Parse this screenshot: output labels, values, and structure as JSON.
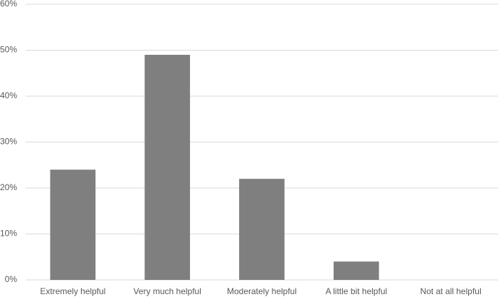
{
  "chart_data": {
    "type": "bar",
    "categories": [
      "Extremely helpful",
      "Very much helpful",
      "Moderately helpful",
      "A little bit helpful",
      "Not at all helpful"
    ],
    "values": [
      24,
      49,
      22,
      4,
      0
    ],
    "color": "#7f7f7f",
    "ylim": [
      0,
      60
    ],
    "yticks": [
      {
        "value": 0,
        "label": "0%"
      },
      {
        "value": 10,
        "label": "10%"
      },
      {
        "value": 20,
        "label": "20%"
      },
      {
        "value": 30,
        "label": "30%"
      },
      {
        "value": 40,
        "label": "40%"
      },
      {
        "value": 50,
        "label": "50%"
      },
      {
        "value": 60,
        "label": "60%"
      }
    ],
    "grid": true
  }
}
